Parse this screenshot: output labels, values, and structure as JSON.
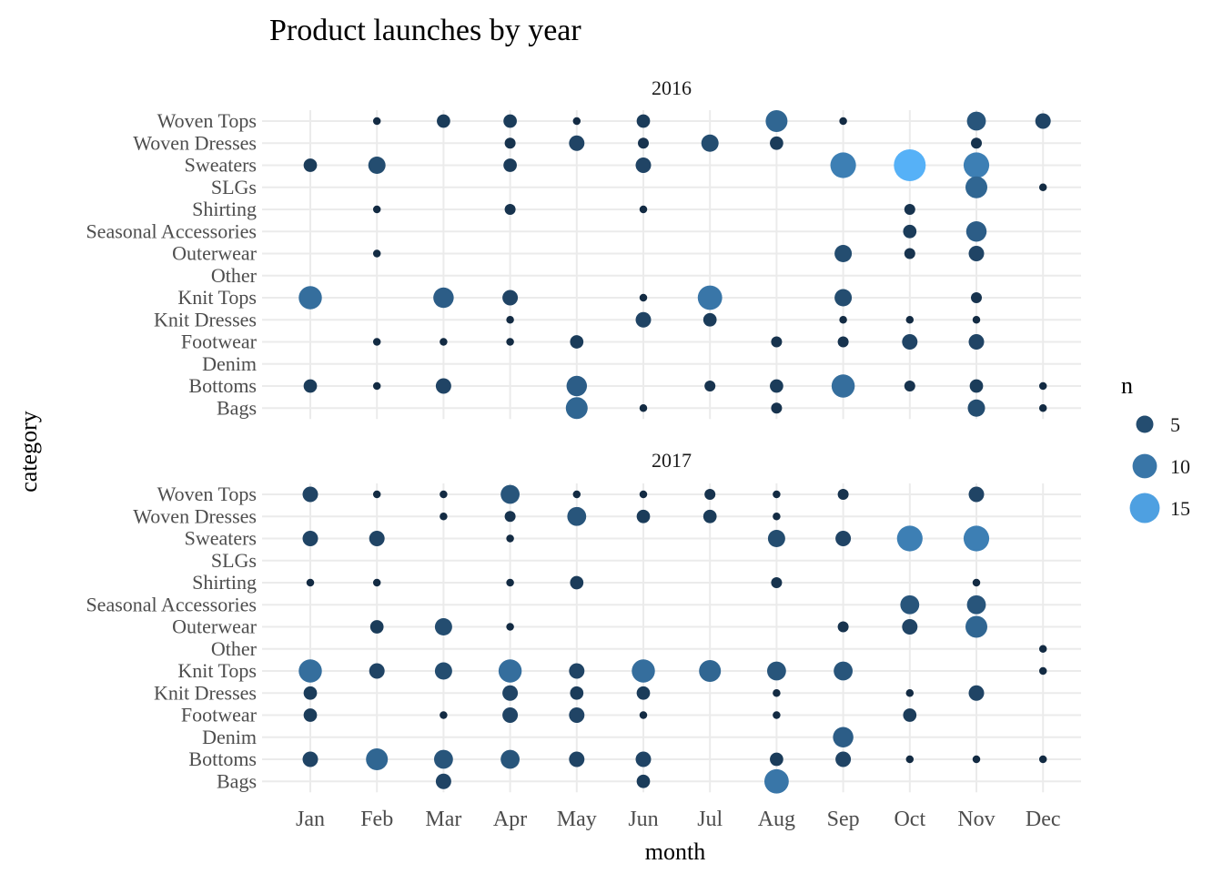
{
  "chart_data": {
    "type": "scatter",
    "title": "Product launches by year",
    "xlabel": "month",
    "ylabel": "category",
    "months": [
      "Jan",
      "Feb",
      "Mar",
      "Apr",
      "May",
      "Jun",
      "Jul",
      "Aug",
      "Sep",
      "Oct",
      "Nov",
      "Dec"
    ],
    "categories": [
      "Woven Tops",
      "Woven Dresses",
      "Sweaters",
      "SLGs",
      "Shirting",
      "Seasonal Accessories",
      "Outerwear",
      "Other",
      "Knit Tops",
      "Knit Dresses",
      "Footwear",
      "Denim",
      "Bottoms",
      "Bags"
    ],
    "grid": true,
    "legend": {
      "title": "n",
      "position": "right",
      "entries": [
        {
          "label": "5",
          "value": 5
        },
        {
          "label": "10",
          "value": 10
        },
        {
          "label": "15",
          "value": 15
        }
      ]
    },
    "size_range": [
      1,
      17
    ],
    "color_low": "#132B43",
    "color_high": "#56B1F7",
    "panels": [
      {
        "label": "2016",
        "points": [
          {
            "category": "Woven Tops",
            "month": "Feb",
            "n": 1
          },
          {
            "category": "Woven Tops",
            "month": "Mar",
            "n": 3
          },
          {
            "category": "Woven Tops",
            "month": "Apr",
            "n": 3
          },
          {
            "category": "Woven Tops",
            "month": "May",
            "n": 1
          },
          {
            "category": "Woven Tops",
            "month": "Jun",
            "n": 3
          },
          {
            "category": "Woven Tops",
            "month": "Aug",
            "n": 8
          },
          {
            "category": "Woven Tops",
            "month": "Sep",
            "n": 1
          },
          {
            "category": "Woven Tops",
            "month": "Nov",
            "n": 6
          },
          {
            "category": "Woven Tops",
            "month": "Dec",
            "n": 4
          },
          {
            "category": "Woven Dresses",
            "month": "Apr",
            "n": 2
          },
          {
            "category": "Woven Dresses",
            "month": "May",
            "n": 4
          },
          {
            "category": "Woven Dresses",
            "month": "Jun",
            "n": 2
          },
          {
            "category": "Woven Dresses",
            "month": "Jul",
            "n": 5
          },
          {
            "category": "Woven Dresses",
            "month": "Aug",
            "n": 3
          },
          {
            "category": "Woven Dresses",
            "month": "Nov",
            "n": 2
          },
          {
            "category": "Sweaters",
            "month": "Jan",
            "n": 3
          },
          {
            "category": "Sweaters",
            "month": "Feb",
            "n": 5
          },
          {
            "category": "Sweaters",
            "month": "Apr",
            "n": 3
          },
          {
            "category": "Sweaters",
            "month": "Jun",
            "n": 4
          },
          {
            "category": "Sweaters",
            "month": "Sep",
            "n": 11
          },
          {
            "category": "Sweaters",
            "month": "Oct",
            "n": 17
          },
          {
            "category": "Sweaters",
            "month": "Nov",
            "n": 11
          },
          {
            "category": "SLGs",
            "month": "Nov",
            "n": 8
          },
          {
            "category": "SLGs",
            "month": "Dec",
            "n": 1
          },
          {
            "category": "Shirting",
            "month": "Feb",
            "n": 1
          },
          {
            "category": "Shirting",
            "month": "Apr",
            "n": 2
          },
          {
            "category": "Shirting",
            "month": "Jun",
            "n": 1
          },
          {
            "category": "Shirting",
            "month": "Oct",
            "n": 2
          },
          {
            "category": "Seasonal Accessories",
            "month": "Oct",
            "n": 3
          },
          {
            "category": "Seasonal Accessories",
            "month": "Nov",
            "n": 7
          },
          {
            "category": "Outerwear",
            "month": "Feb",
            "n": 1
          },
          {
            "category": "Outerwear",
            "month": "Sep",
            "n": 5
          },
          {
            "category": "Outerwear",
            "month": "Oct",
            "n": 2
          },
          {
            "category": "Outerwear",
            "month": "Nov",
            "n": 4
          },
          {
            "category": "Knit Tops",
            "month": "Jan",
            "n": 9
          },
          {
            "category": "Knit Tops",
            "month": "Mar",
            "n": 7
          },
          {
            "category": "Knit Tops",
            "month": "Apr",
            "n": 4
          },
          {
            "category": "Knit Tops",
            "month": "Jun",
            "n": 1
          },
          {
            "category": "Knit Tops",
            "month": "Jul",
            "n": 10
          },
          {
            "category": "Knit Tops",
            "month": "Sep",
            "n": 5
          },
          {
            "category": "Knit Tops",
            "month": "Nov",
            "n": 2
          },
          {
            "category": "Knit Dresses",
            "month": "Apr",
            "n": 1
          },
          {
            "category": "Knit Dresses",
            "month": "Jun",
            "n": 4
          },
          {
            "category": "Knit Dresses",
            "month": "Jul",
            "n": 3
          },
          {
            "category": "Knit Dresses",
            "month": "Sep",
            "n": 1
          },
          {
            "category": "Knit Dresses",
            "month": "Oct",
            "n": 1
          },
          {
            "category": "Knit Dresses",
            "month": "Nov",
            "n": 1
          },
          {
            "category": "Footwear",
            "month": "Feb",
            "n": 1
          },
          {
            "category": "Footwear",
            "month": "Mar",
            "n": 1
          },
          {
            "category": "Footwear",
            "month": "Apr",
            "n": 1
          },
          {
            "category": "Footwear",
            "month": "May",
            "n": 3
          },
          {
            "category": "Footwear",
            "month": "Aug",
            "n": 2
          },
          {
            "category": "Footwear",
            "month": "Sep",
            "n": 2
          },
          {
            "category": "Footwear",
            "month": "Oct",
            "n": 4
          },
          {
            "category": "Footwear",
            "month": "Nov",
            "n": 4
          },
          {
            "category": "Bottoms",
            "month": "Jan",
            "n": 3
          },
          {
            "category": "Bottoms",
            "month": "Feb",
            "n": 1
          },
          {
            "category": "Bottoms",
            "month": "Mar",
            "n": 4
          },
          {
            "category": "Bottoms",
            "month": "May",
            "n": 7
          },
          {
            "category": "Bottoms",
            "month": "Jul",
            "n": 2
          },
          {
            "category": "Bottoms",
            "month": "Aug",
            "n": 3
          },
          {
            "category": "Bottoms",
            "month": "Sep",
            "n": 9
          },
          {
            "category": "Bottoms",
            "month": "Oct",
            "n": 2
          },
          {
            "category": "Bottoms",
            "month": "Nov",
            "n": 3
          },
          {
            "category": "Bottoms",
            "month": "Dec",
            "n": 1
          },
          {
            "category": "Bags",
            "month": "May",
            "n": 8
          },
          {
            "category": "Bags",
            "month": "Jun",
            "n": 1
          },
          {
            "category": "Bags",
            "month": "Aug",
            "n": 2
          },
          {
            "category": "Bags",
            "month": "Nov",
            "n": 5
          },
          {
            "category": "Bags",
            "month": "Dec",
            "n": 1
          }
        ]
      },
      {
        "label": "2017",
        "points": [
          {
            "category": "Woven Tops",
            "month": "Jan",
            "n": 4
          },
          {
            "category": "Woven Tops",
            "month": "Feb",
            "n": 1
          },
          {
            "category": "Woven Tops",
            "month": "Mar",
            "n": 1
          },
          {
            "category": "Woven Tops",
            "month": "Apr",
            "n": 6
          },
          {
            "category": "Woven Tops",
            "month": "May",
            "n": 1
          },
          {
            "category": "Woven Tops",
            "month": "Jun",
            "n": 1
          },
          {
            "category": "Woven Tops",
            "month": "Jul",
            "n": 2
          },
          {
            "category": "Woven Tops",
            "month": "Aug",
            "n": 1
          },
          {
            "category": "Woven Tops",
            "month": "Sep",
            "n": 2
          },
          {
            "category": "Woven Tops",
            "month": "Nov",
            "n": 4
          },
          {
            "category": "Woven Dresses",
            "month": "Mar",
            "n": 1
          },
          {
            "category": "Woven Dresses",
            "month": "Apr",
            "n": 2
          },
          {
            "category": "Woven Dresses",
            "month": "May",
            "n": 6
          },
          {
            "category": "Woven Dresses",
            "month": "Jun",
            "n": 3
          },
          {
            "category": "Woven Dresses",
            "month": "Jul",
            "n": 3
          },
          {
            "category": "Woven Dresses",
            "month": "Aug",
            "n": 1
          },
          {
            "category": "Sweaters",
            "month": "Jan",
            "n": 4
          },
          {
            "category": "Sweaters",
            "month": "Feb",
            "n": 4
          },
          {
            "category": "Sweaters",
            "month": "Apr",
            "n": 1
          },
          {
            "category": "Sweaters",
            "month": "Aug",
            "n": 5
          },
          {
            "category": "Sweaters",
            "month": "Sep",
            "n": 4
          },
          {
            "category": "Sweaters",
            "month": "Oct",
            "n": 11
          },
          {
            "category": "Sweaters",
            "month": "Nov",
            "n": 11
          },
          {
            "category": "Shirting",
            "month": "Jan",
            "n": 1
          },
          {
            "category": "Shirting",
            "month": "Feb",
            "n": 1
          },
          {
            "category": "Shirting",
            "month": "Apr",
            "n": 1
          },
          {
            "category": "Shirting",
            "month": "May",
            "n": 3
          },
          {
            "category": "Shirting",
            "month": "Aug",
            "n": 2
          },
          {
            "category": "Shirting",
            "month": "Nov",
            "n": 1
          },
          {
            "category": "Seasonal Accessories",
            "month": "Oct",
            "n": 6
          },
          {
            "category": "Seasonal Accessories",
            "month": "Nov",
            "n": 6
          },
          {
            "category": "Outerwear",
            "month": "Feb",
            "n": 3
          },
          {
            "category": "Outerwear",
            "month": "Mar",
            "n": 5
          },
          {
            "category": "Outerwear",
            "month": "Apr",
            "n": 1
          },
          {
            "category": "Outerwear",
            "month": "Sep",
            "n": 2
          },
          {
            "category": "Outerwear",
            "month": "Oct",
            "n": 4
          },
          {
            "category": "Outerwear",
            "month": "Nov",
            "n": 8
          },
          {
            "category": "Other",
            "month": "Dec",
            "n": 1
          },
          {
            "category": "Knit Tops",
            "month": "Jan",
            "n": 9
          },
          {
            "category": "Knit Tops",
            "month": "Feb",
            "n": 4
          },
          {
            "category": "Knit Tops",
            "month": "Mar",
            "n": 5
          },
          {
            "category": "Knit Tops",
            "month": "Apr",
            "n": 9
          },
          {
            "category": "Knit Tops",
            "month": "May",
            "n": 4
          },
          {
            "category": "Knit Tops",
            "month": "Jun",
            "n": 9
          },
          {
            "category": "Knit Tops",
            "month": "Jul",
            "n": 8
          },
          {
            "category": "Knit Tops",
            "month": "Aug",
            "n": 6
          },
          {
            "category": "Knit Tops",
            "month": "Sep",
            "n": 6
          },
          {
            "category": "Knit Tops",
            "month": "Dec",
            "n": 1
          },
          {
            "category": "Knit Dresses",
            "month": "Jan",
            "n": 3
          },
          {
            "category": "Knit Dresses",
            "month": "Apr",
            "n": 4
          },
          {
            "category": "Knit Dresses",
            "month": "May",
            "n": 3
          },
          {
            "category": "Knit Dresses",
            "month": "Jun",
            "n": 3
          },
          {
            "category": "Knit Dresses",
            "month": "Aug",
            "n": 1
          },
          {
            "category": "Knit Dresses",
            "month": "Oct",
            "n": 1
          },
          {
            "category": "Knit Dresses",
            "month": "Nov",
            "n": 4
          },
          {
            "category": "Footwear",
            "month": "Jan",
            "n": 3
          },
          {
            "category": "Footwear",
            "month": "Mar",
            "n": 1
          },
          {
            "category": "Footwear",
            "month": "Apr",
            "n": 4
          },
          {
            "category": "Footwear",
            "month": "May",
            "n": 4
          },
          {
            "category": "Footwear",
            "month": "Jun",
            "n": 1
          },
          {
            "category": "Footwear",
            "month": "Aug",
            "n": 1
          },
          {
            "category": "Footwear",
            "month": "Oct",
            "n": 3
          },
          {
            "category": "Denim",
            "month": "Sep",
            "n": 7
          },
          {
            "category": "Bottoms",
            "month": "Jan",
            "n": 4
          },
          {
            "category": "Bottoms",
            "month": "Feb",
            "n": 8
          },
          {
            "category": "Bottoms",
            "month": "Mar",
            "n": 6
          },
          {
            "category": "Bottoms",
            "month": "Apr",
            "n": 6
          },
          {
            "category": "Bottoms",
            "month": "May",
            "n": 4
          },
          {
            "category": "Bottoms",
            "month": "Jun",
            "n": 4
          },
          {
            "category": "Bottoms",
            "month": "Aug",
            "n": 3
          },
          {
            "category": "Bottoms",
            "month": "Sep",
            "n": 4
          },
          {
            "category": "Bottoms",
            "month": "Oct",
            "n": 1
          },
          {
            "category": "Bottoms",
            "month": "Nov",
            "n": 1
          },
          {
            "category": "Bottoms",
            "month": "Dec",
            "n": 1
          },
          {
            "category": "Bags",
            "month": "Mar",
            "n": 4
          },
          {
            "category": "Bags",
            "month": "Jun",
            "n": 3
          },
          {
            "category": "Bags",
            "month": "Aug",
            "n": 10
          }
        ]
      }
    ]
  }
}
